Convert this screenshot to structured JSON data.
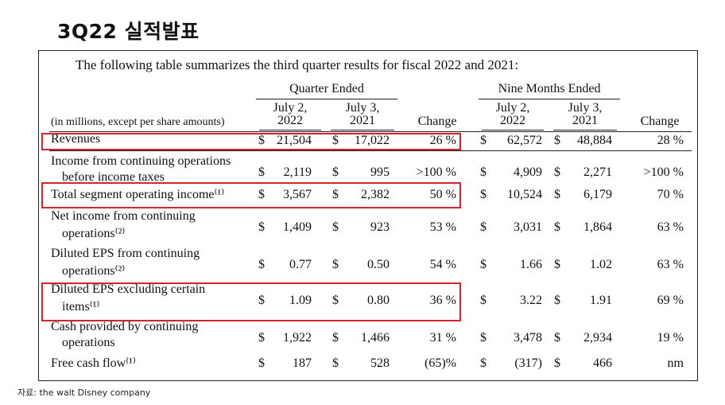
{
  "slide_title": "3Q22 실적발표",
  "intro": "The following table summarizes the third quarter results for fiscal 2022 and 2021:",
  "units_label": "(in millions, except per share amounts)",
  "groups": {
    "quarter": "Quarter Ended",
    "nine": "Nine Months Ended"
  },
  "columns": {
    "q_2022": [
      "July 2,",
      "2022"
    ],
    "q_2021": [
      "July 3,",
      "2021"
    ],
    "q_change": "Change",
    "n_2022": [
      "July 2,",
      "2022"
    ],
    "n_2021": [
      "July 3,",
      "2021"
    ],
    "n_change": "Change"
  },
  "rows": [
    {
      "label": [
        "Revenues"
      ],
      "q22": "21,504",
      "q21": "17,022",
      "qch": "26 %",
      "n22": "62,572",
      "n21": "48,884",
      "nch": "28 %"
    },
    {
      "label": [
        "Income from continuing operations",
        "before income taxes"
      ],
      "q22": "2,119",
      "q21": "995",
      "qch": ">100 %",
      "n22": "4,909",
      "n21": "2,271",
      "nch": ">100 %"
    },
    {
      "label": [
        "Total segment operating income⁽¹⁾"
      ],
      "q22": "3,567",
      "q21": "2,382",
      "qch": "50 %",
      "n22": "10,524",
      "n21": "6,179",
      "nch": "70 %"
    },
    {
      "label": [
        "Net income from continuing",
        "operations⁽²⁾"
      ],
      "q22": "1,409",
      "q21": "923",
      "qch": "53 %",
      "n22": "3,031",
      "n21": "1,864",
      "nch": "63 %"
    },
    {
      "label": [
        "Diluted EPS from continuing",
        "operations⁽²⁾"
      ],
      "q22": "0.77",
      "q21": "0.50",
      "qch": "54 %",
      "n22": "1.66",
      "n21": "1.02",
      "nch": "63 %"
    },
    {
      "label": [
        "Diluted EPS excluding certain",
        "items⁽¹⁾"
      ],
      "q22": "1.09",
      "q21": "0.80",
      "qch": "36 %",
      "n22": "3.22",
      "n21": "1.91",
      "nch": "69 %"
    },
    {
      "label": [
        "Cash provided by continuing",
        "operations"
      ],
      "q22": "1,922",
      "q21": "1,466",
      "qch": "31 %",
      "n22": "3,478",
      "n21": "2,934",
      "nch": "19 %"
    },
    {
      "label": [
        "Free cash flow⁽¹⁾"
      ],
      "q22": "187",
      "q21": "528",
      "qch": "(65)%",
      "n22": "(317)",
      "n21": "466",
      "nch": "nm"
    }
  ],
  "currency_symbol": "$",
  "highlight_color": "#d3242c",
  "source": "자료: the walt Disney company"
}
